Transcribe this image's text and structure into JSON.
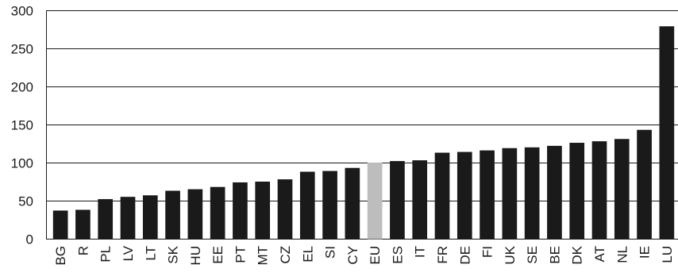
{
  "chart_data": {
    "type": "bar",
    "title": "",
    "xlabel": "",
    "ylabel": "",
    "ylim": [
      0,
      300
    ],
    "yticks": [
      0,
      50,
      100,
      150,
      200,
      250,
      300
    ],
    "grid": true,
    "legend": "none",
    "categories": [
      "BG",
      "R",
      "PL",
      "LV",
      "LT",
      "SK",
      "HU",
      "EE",
      "PT",
      "MT",
      "CZ",
      "EL",
      "SI",
      "CY",
      "EU",
      "ES",
      "IT",
      "FR",
      "DE",
      "FI",
      "UK",
      "SE",
      "BE",
      "DK",
      "AT",
      "NL",
      "IE",
      "LU"
    ],
    "values": [
      37,
      38,
      52,
      55,
      57,
      63,
      65,
      68,
      74,
      75,
      78,
      88,
      89,
      93,
      100,
      102,
      103,
      113,
      114,
      116,
      119,
      120,
      122,
      126,
      128,
      131,
      143,
      279
    ],
    "colors": {
      "bar": "#1a1a1a",
      "highlight": "#bdbdbd",
      "highlight_category": "EU",
      "grid": "#1a1a1a"
    }
  }
}
